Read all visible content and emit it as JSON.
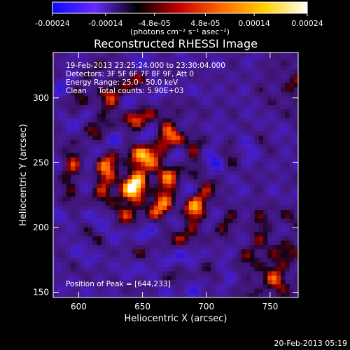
{
  "chart_data": {
    "type": "heatmap",
    "title": "Reconstructed RHESSI Image",
    "xlabel": "Heliocentric X (arcsec)",
    "ylabel": "Heliocentric Y (arcsec)",
    "xlim": [
      580,
      772
    ],
    "ylim": [
      146,
      335
    ],
    "x_ticks": [
      600,
      650,
      700,
      750
    ],
    "y_ticks": [
      150,
      200,
      250,
      300
    ],
    "colorbar": {
      "range": [
        -0.00024,
        0.00024
      ],
      "ticks": [
        "-0.00024",
        "-0.00014",
        "-4.8e-05",
        "4.8e-05",
        "0.00014",
        "0.00024"
      ],
      "tick_values": [
        -0.00024,
        -0.00014,
        -4.8e-05,
        4.8e-05,
        0.00014,
        0.00024
      ],
      "unit_label": "(photons cm⁻² s⁻¹ asec⁻²)",
      "colors": [
        "#0a0aff",
        "#6a2aff",
        "#000000",
        "#c80000",
        "#ff6a00",
        "#ffd000",
        "#ffffff"
      ]
    },
    "annotations": {
      "time_range": "19-Feb-2013 23:25:24.000 to 23:30:04.000",
      "detectors": "Detectors: 3F 5F 6F 7F 8F 9F, Att 0",
      "energy_range": "Energy Range: 25.0 - 50.0 keV",
      "clean_counts": "Clean     Total counts: 5.90E+03",
      "peak_position": "Position of Peak = [644,233]"
    },
    "peak": {
      "x": 644,
      "y": 233
    },
    "sources": [
      {
        "x": 644,
        "y": 233,
        "intensity": 1.0
      },
      {
        "x": 668,
        "y": 268,
        "intensity": 0.55
      },
      {
        "x": 625,
        "y": 300,
        "intensity": 0.45
      },
      {
        "x": 688,
        "y": 215,
        "intensity": 0.55
      },
      {
        "x": 600,
        "y": 245,
        "intensity": 0.35
      },
      {
        "x": 755,
        "y": 158,
        "intensity": 0.55
      },
      {
        "x": 745,
        "y": 195,
        "intensity": 0.35
      },
      {
        "x": 770,
        "y": 310,
        "intensity": 0.35
      }
    ]
  },
  "footer": {
    "timestamp": "20-Feb-2013 05:19"
  },
  "colors": {
    "background": "#000000",
    "text": "#ffffff"
  }
}
